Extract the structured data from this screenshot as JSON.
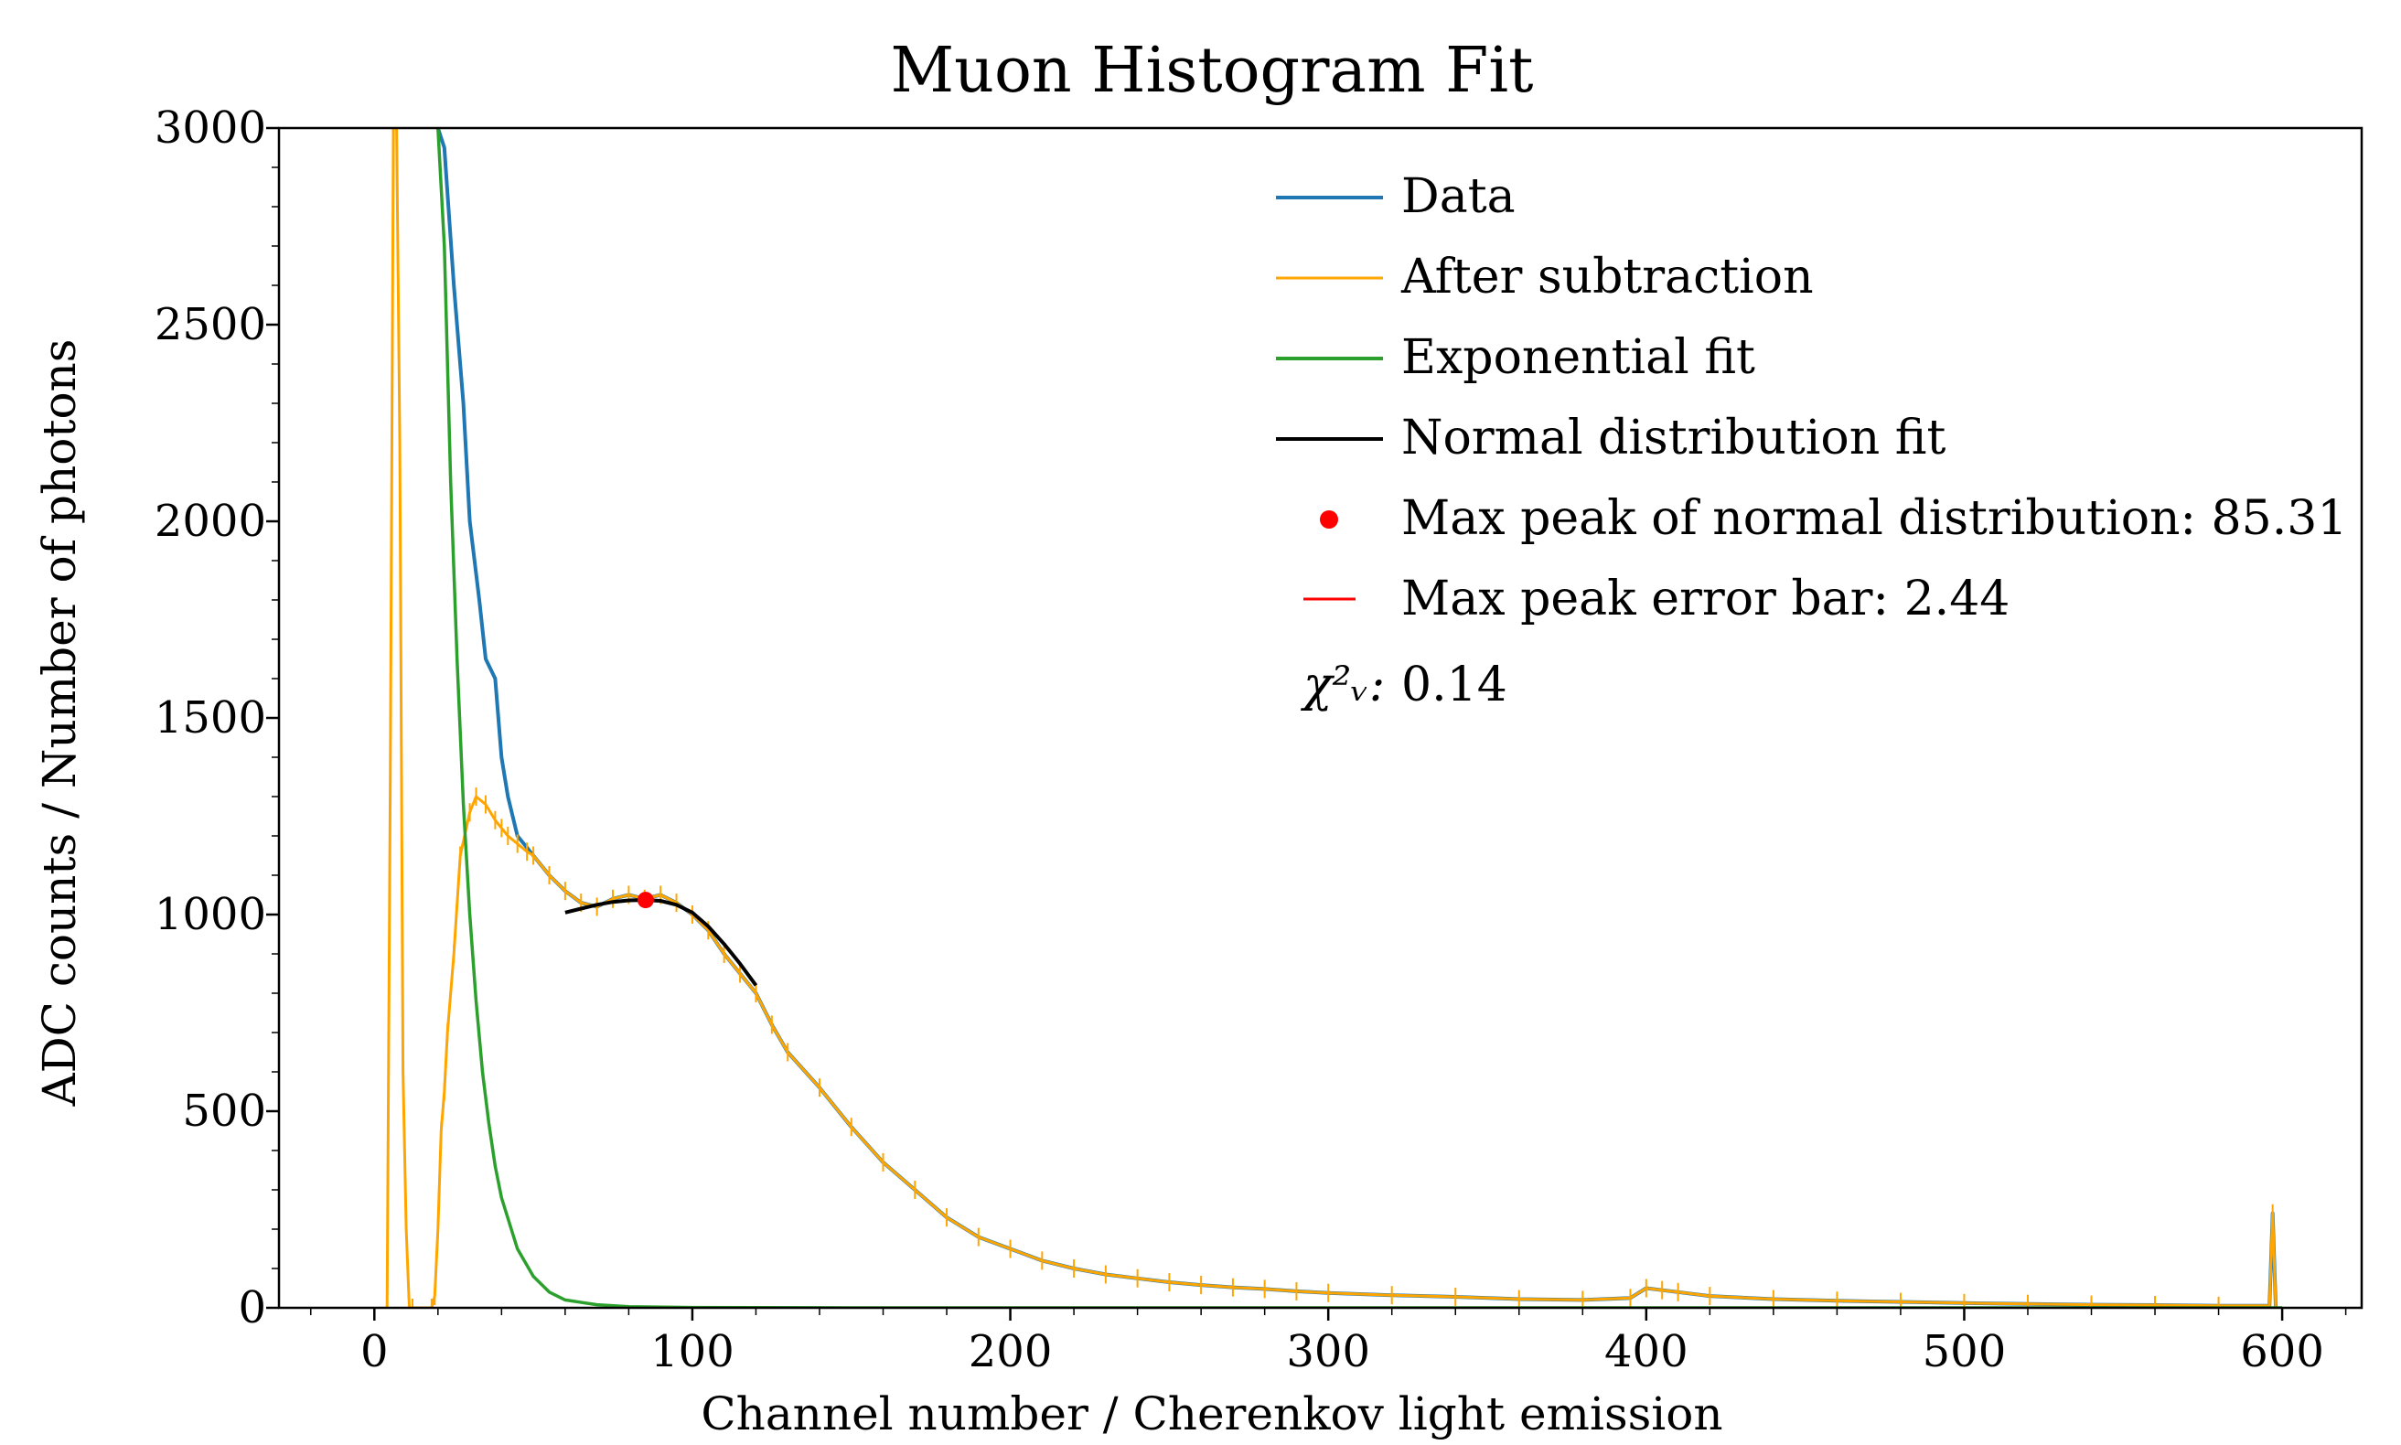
{
  "chart_data": {
    "type": "line",
    "title": "Muon Histogram Fit",
    "xlabel": "Channel number / Cherenkov light emission",
    "ylabel": "ADC counts / Number of photons",
    "xlim": [
      -30,
      625
    ],
    "ylim": [
      0,
      3000
    ],
    "xticks": [
      0,
      100,
      200,
      300,
      400,
      500,
      600
    ],
    "yticks": [
      0,
      500,
      1000,
      1500,
      2000,
      2500,
      3000
    ],
    "legend_position": "top-right",
    "series": [
      {
        "name": "Data",
        "color": "#1f77b4",
        "x": [
          20,
          22,
          25,
          28,
          30,
          33,
          35,
          38,
          40,
          42,
          45,
          48,
          50,
          55,
          60,
          65,
          70,
          75,
          80,
          85,
          90,
          95,
          100,
          105,
          110,
          115,
          120,
          125,
          130,
          140,
          150,
          160,
          170,
          180,
          190,
          200,
          210,
          220,
          230,
          240,
          250,
          260,
          270,
          280,
          290,
          300,
          320,
          340,
          360,
          380,
          395,
          400,
          405,
          410,
          420,
          440,
          460,
          480,
          500,
          520,
          540,
          560,
          580,
          596,
          597,
          598
        ],
        "y": [
          3000,
          2950,
          2600,
          2300,
          2000,
          1800,
          1650,
          1600,
          1400,
          1300,
          1200,
          1170,
          1150,
          1100,
          1060,
          1030,
          1020,
          1040,
          1050,
          1040,
          1050,
          1030,
          1000,
          960,
          900,
          850,
          800,
          720,
          650,
          560,
          460,
          370,
          300,
          230,
          180,
          150,
          120,
          100,
          85,
          75,
          65,
          58,
          52,
          48,
          42,
          38,
          32,
          28,
          22,
          20,
          25,
          50,
          45,
          40,
          30,
          22,
          18,
          15,
          12,
          10,
          8,
          7,
          5,
          5,
          240,
          0
        ]
      },
      {
        "name": "After subtraction",
        "color": "#ffa500",
        "x": [
          4,
          5,
          6,
          7,
          8,
          9,
          10,
          11,
          12,
          18,
          19,
          20,
          21,
          22,
          23,
          25,
          27,
          30,
          32,
          35,
          38,
          40,
          42,
          45,
          48,
          50,
          55,
          60,
          65,
          70,
          75,
          80,
          85,
          90,
          95,
          100,
          105,
          110,
          115,
          120,
          125,
          130,
          140,
          150,
          160,
          170,
          180,
          190,
          200,
          210,
          220,
          230,
          240,
          250,
          260,
          270,
          280,
          290,
          300,
          320,
          340,
          360,
          380,
          395,
          400,
          405,
          410,
          420,
          440,
          460,
          480,
          500,
          520,
          540,
          560,
          580,
          596,
          597,
          598
        ],
        "y": [
          0,
          1350,
          3000,
          3000,
          2200,
          600,
          200,
          0,
          0,
          0,
          30,
          200,
          450,
          550,
          700,
          900,
          1150,
          1260,
          1300,
          1280,
          1240,
          1220,
          1200,
          1180,
          1160,
          1150,
          1100,
          1060,
          1030,
          1020,
          1040,
          1050,
          1040,
          1050,
          1030,
          1000,
          960,
          900,
          850,
          800,
          720,
          650,
          560,
          460,
          370,
          300,
          230,
          180,
          150,
          120,
          100,
          85,
          75,
          65,
          58,
          52,
          48,
          42,
          38,
          32,
          28,
          22,
          20,
          25,
          50,
          45,
          40,
          30,
          22,
          18,
          15,
          12,
          10,
          8,
          7,
          5,
          5,
          240,
          0
        ]
      },
      {
        "name": "Exponential fit",
        "color": "#2ca02c",
        "x": [
          20,
          22,
          24,
          26,
          28,
          30,
          32,
          34,
          36,
          38,
          40,
          45,
          50,
          55,
          60,
          70,
          80,
          100,
          150,
          200,
          300,
          400,
          500,
          600
        ],
        "y": [
          3000,
          2700,
          2100,
          1650,
          1280,
          1000,
          780,
          600,
          470,
          360,
          280,
          150,
          80,
          40,
          20,
          8,
          3,
          1,
          0,
          0,
          0,
          0,
          0,
          0
        ]
      },
      {
        "name": "Normal distribution fit",
        "color": "#000000",
        "x": [
          60,
          65,
          70,
          75,
          80,
          85,
          90,
          95,
          100,
          105,
          110,
          115,
          120
        ],
        "y": [
          1005,
          1015,
          1025,
          1032,
          1036,
          1037,
          1035,
          1025,
          1005,
          970,
          925,
          875,
          820
        ]
      }
    ],
    "peak_point": {
      "name": "Max peak of normal distribution: 85.31",
      "x": 85.31,
      "y": 1037,
      "color": "#ff0000"
    },
    "error_bar": {
      "name": "Max peak error bar: 2.44",
      "x": 85.31,
      "error": 2.44,
      "color": "#ff0000"
    },
    "chi_squared": {
      "label": "χ²ᵥ:",
      "value": "0.14"
    },
    "legend": [
      {
        "label": "Data",
        "color": "#1f77b4",
        "marker": "line"
      },
      {
        "label": "After subtraction",
        "color": "#ffa500",
        "marker": "line"
      },
      {
        "label": "Exponential fit",
        "color": "#2ca02c",
        "marker": "line"
      },
      {
        "label": "Normal distribution fit",
        "color": "#000000",
        "marker": "line"
      },
      {
        "label": "Max peak of normal distribution: 85.31",
        "color": "#ff0000",
        "marker": "dot"
      },
      {
        "label": "Max peak error bar: 2.44",
        "color": "#ff0000",
        "marker": "dash"
      }
    ]
  }
}
